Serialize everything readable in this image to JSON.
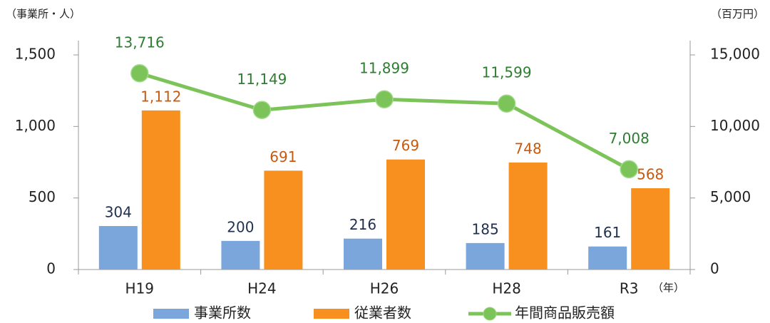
{
  "chart_data": {
    "type": "bar_line",
    "y_label": "（事業所・人）",
    "y2_label": "（百万円）",
    "x_label": "（年）",
    "categories": [
      "H19",
      "H24",
      "H26",
      "H28",
      "R3"
    ],
    "series": [
      {
        "name": "事業所数",
        "type": "bar",
        "color": "#7aa6dc",
        "label_color": "#1f3050",
        "values": [
          304,
          200,
          216,
          185,
          161
        ]
      },
      {
        "name": "従業者数",
        "type": "bar",
        "color": "#f7901e",
        "label_color": "#c55a11",
        "values": [
          1112,
          691,
          769,
          748,
          568
        ],
        "value_labels": [
          "1,112",
          "691",
          "769",
          "748",
          "568"
        ]
      },
      {
        "name": "年間商品販売額",
        "type": "line",
        "axis": "y2",
        "color": "#7cc45a",
        "label_color": "#2e7d32",
        "values": [
          13716,
          11149,
          11899,
          11599,
          7008
        ],
        "value_labels": [
          "13,716",
          "11,149",
          "11,899",
          "11,599",
          "7,008"
        ]
      }
    ],
    "ylim": [
      0,
      1500
    ],
    "yticks": [
      0,
      500,
      {
        "value": 1000,
        "label": "1,000"
      },
      {
        "value": 1500,
        "label": "1,500"
      }
    ],
    "y2lim": [
      0,
      15000
    ],
    "y2ticks": [
      0,
      {
        "value": 5000,
        "label": "5,000"
      },
      {
        "value": 10000,
        "label": "10,000"
      },
      {
        "value": 15000,
        "label": "15,000"
      }
    ],
    "legend": "bottom"
  }
}
